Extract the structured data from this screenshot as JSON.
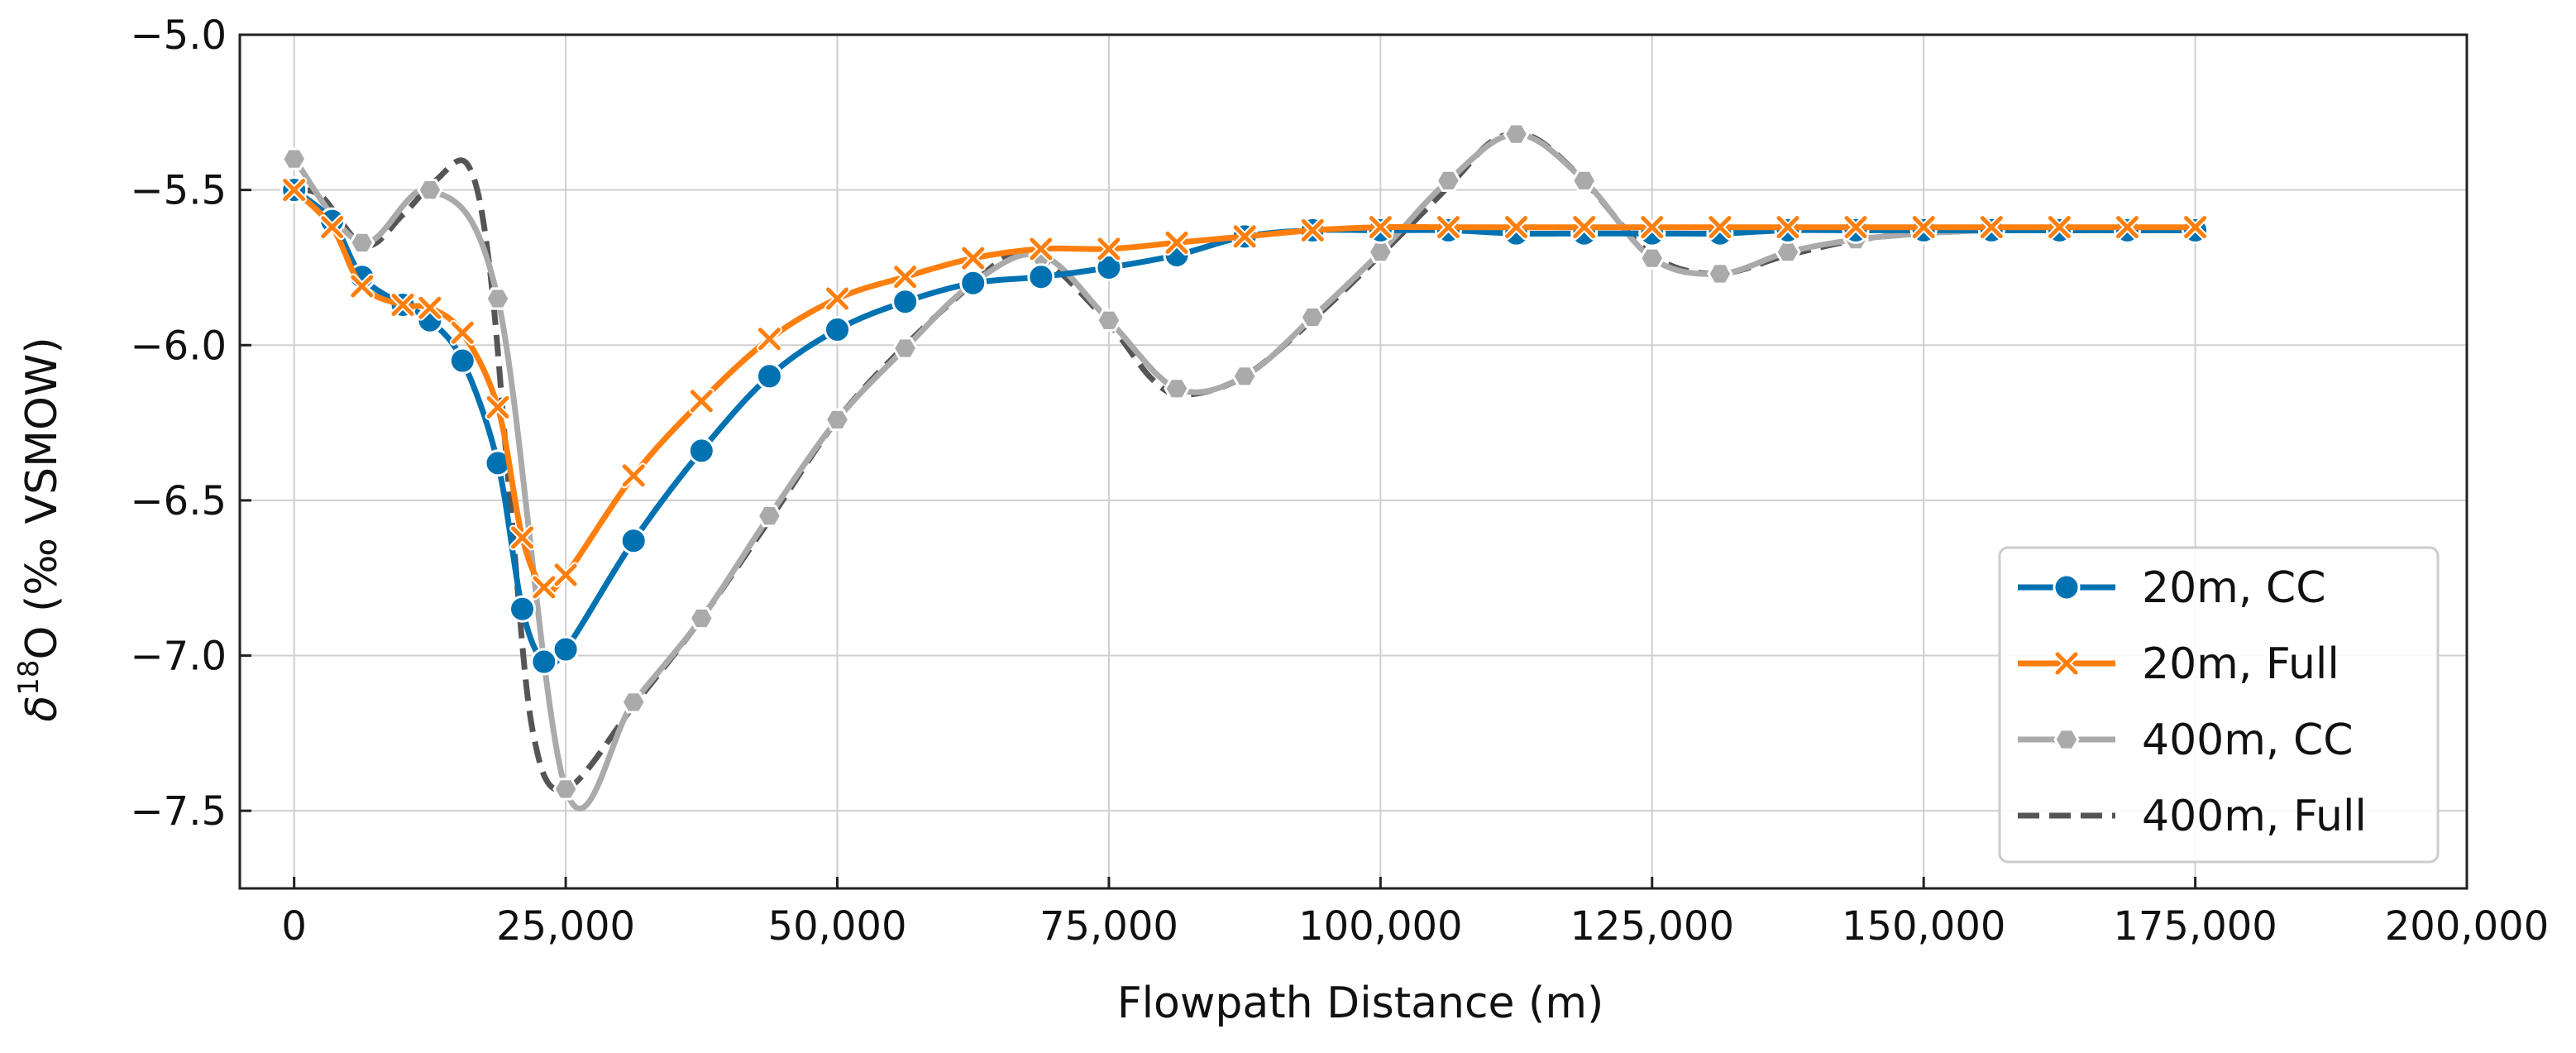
{
  "chart_data": {
    "type": "line",
    "title": "",
    "xlabel": "Flowpath Distance (m)",
    "ylabel": {
      "prefix": "δ",
      "superscript": "18",
      "suffix": "O (‰ VSMOW)"
    },
    "xlim": [
      -5000,
      200000
    ],
    "ylim": [
      -7.75,
      -5.0
    ],
    "grid": true,
    "legend_position": "lower-right",
    "x_ticks": [
      {
        "value": 0,
        "label": "0"
      },
      {
        "value": 25000,
        "label": "25,000"
      },
      {
        "value": 50000,
        "label": "50,000"
      },
      {
        "value": 75000,
        "label": "75,000"
      },
      {
        "value": 100000,
        "label": "100,000"
      },
      {
        "value": 125000,
        "label": "125,000"
      },
      {
        "value": 150000,
        "label": "150,000"
      },
      {
        "value": 175000,
        "label": "175,000"
      },
      {
        "value": 200000,
        "label": "200,000"
      }
    ],
    "y_ticks": [
      {
        "value": -5.0,
        "label": "−5.0"
      },
      {
        "value": -5.5,
        "label": "−5.5"
      },
      {
        "value": -6.0,
        "label": "−6.0"
      },
      {
        "value": -6.5,
        "label": "−6.5"
      },
      {
        "value": -7.0,
        "label": "−7.0"
      },
      {
        "value": -7.5,
        "label": "−7.5"
      }
    ],
    "series": [
      {
        "name": "400m, Full",
        "color": "#555555",
        "line_style": "dashed",
        "marker": "none",
        "x": [
          0,
          2500,
          6500,
          10000,
          13000,
          16000,
          18000,
          20000,
          22000,
          25000,
          31500,
          37500,
          44000,
          50000,
          56000,
          62500,
          66000,
          69000,
          75000,
          79000,
          82000,
          87500,
          94000,
          100000,
          106500,
          110000,
          112500,
          115000,
          119000,
          125000,
          131000,
          137500,
          144000,
          150000,
          156000,
          162500,
          169000,
          175000
        ],
        "y": [
          -5.5,
          -5.52,
          -5.68,
          -5.58,
          -5.47,
          -5.42,
          -5.75,
          -6.55,
          -7.25,
          -7.43,
          -7.15,
          -6.88,
          -6.55,
          -6.24,
          -6.01,
          -5.8,
          -5.71,
          -5.72,
          -5.93,
          -6.11,
          -6.16,
          -6.1,
          -5.91,
          -5.71,
          -5.48,
          -5.35,
          -5.32,
          -5.35,
          -5.48,
          -5.71,
          -5.77,
          -5.71,
          -5.66,
          -5.64,
          -5.63,
          -5.63,
          -5.63,
          -5.63
        ]
      },
      {
        "name": "400m, CC",
        "color": "#aaaaaa",
        "line_style": "solid",
        "marker": "hexagon",
        "x": [
          0,
          6250,
          12500,
          18750,
          25000,
          31250,
          37500,
          43750,
          50000,
          56250,
          62500,
          68750,
          75000,
          81250,
          87500,
          93750,
          100000,
          106250,
          112500,
          118750,
          125000,
          131250,
          137500,
          143750,
          150000,
          156250,
          162500,
          168750,
          175000
        ],
        "y": [
          -5.4,
          -5.67,
          -5.5,
          -5.85,
          -7.43,
          -7.15,
          -6.88,
          -6.55,
          -6.24,
          -6.01,
          -5.8,
          -5.71,
          -5.92,
          -6.14,
          -6.1,
          -5.91,
          -5.7,
          -5.47,
          -5.32,
          -5.47,
          -5.72,
          -5.77,
          -5.7,
          -5.66,
          -5.64,
          -5.63,
          -5.63,
          -5.63,
          -5.63
        ]
      },
      {
        "name": "20m, CC",
        "color": "#0072b2",
        "line_style": "solid",
        "marker": "circle",
        "x": [
          0,
          3500,
          6250,
          10000,
          12500,
          15500,
          18750,
          21000,
          23000,
          25000,
          31250,
          37500,
          43750,
          50000,
          56250,
          62500,
          68750,
          75000,
          81250,
          87500,
          93750,
          100000,
          106250,
          112500,
          118750,
          125000,
          131250,
          137500,
          143750,
          150000,
          156250,
          162500,
          168750,
          175000
        ],
        "y": [
          -5.5,
          -5.6,
          -5.78,
          -5.87,
          -5.92,
          -6.05,
          -6.38,
          -6.85,
          -7.02,
          -6.98,
          -6.63,
          -6.34,
          -6.1,
          -5.95,
          -5.86,
          -5.8,
          -5.78,
          -5.75,
          -5.71,
          -5.65,
          -5.63,
          -5.63,
          -5.63,
          -5.64,
          -5.64,
          -5.64,
          -5.64,
          -5.63,
          -5.63,
          -5.63,
          -5.63,
          -5.63,
          -5.63,
          -5.63
        ]
      },
      {
        "name": "20m, Full",
        "color": "#ff7f0e",
        "line_style": "solid",
        "marker": "x",
        "x": [
          0,
          3500,
          6250,
          10000,
          12500,
          15500,
          18750,
          21000,
          23000,
          25000,
          31250,
          37500,
          43750,
          50000,
          56250,
          62500,
          68750,
          75000,
          81250,
          87500,
          93750,
          100000,
          106250,
          112500,
          118750,
          125000,
          131250,
          137500,
          143750,
          150000,
          156250,
          162500,
          168750,
          175000
        ],
        "y": [
          -5.5,
          -5.62,
          -5.81,
          -5.87,
          -5.88,
          -5.96,
          -6.2,
          -6.62,
          -6.78,
          -6.74,
          -6.42,
          -6.18,
          -5.98,
          -5.85,
          -5.78,
          -5.72,
          -5.69,
          -5.69,
          -5.67,
          -5.65,
          -5.63,
          -5.62,
          -5.62,
          -5.62,
          -5.62,
          -5.62,
          -5.62,
          -5.62,
          -5.62,
          -5.62,
          -5.62,
          -5.62,
          -5.62,
          -5.62
        ]
      }
    ],
    "legend": [
      {
        "name": "20m, CC",
        "color": "#0072b2",
        "line_style": "solid",
        "marker": "circle"
      },
      {
        "name": "20m, Full",
        "color": "#ff7f0e",
        "line_style": "solid",
        "marker": "x"
      },
      {
        "name": "400m, CC",
        "color": "#aaaaaa",
        "line_style": "solid",
        "marker": "hexagon"
      },
      {
        "name": "400m, Full",
        "color": "#555555",
        "line_style": "dashed",
        "marker": "none"
      }
    ]
  }
}
